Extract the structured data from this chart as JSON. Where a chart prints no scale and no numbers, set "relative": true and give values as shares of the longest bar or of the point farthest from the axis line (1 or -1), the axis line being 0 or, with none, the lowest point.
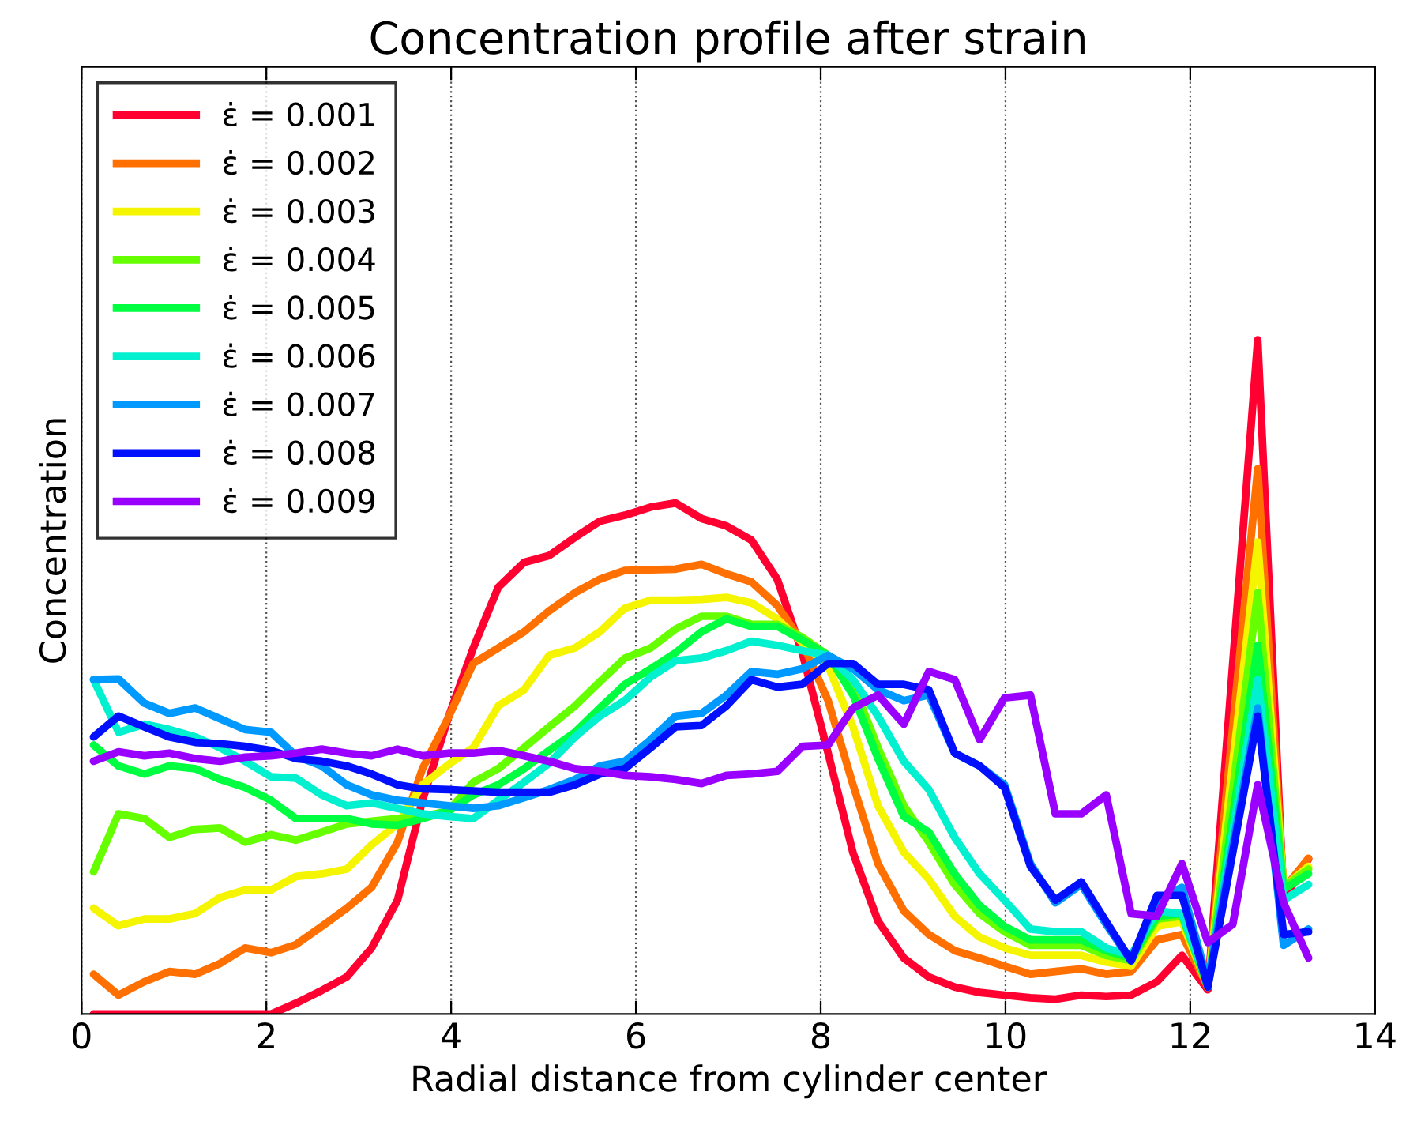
{
  "chart_data": {
    "type": "line",
    "title": "Concentration profile after strain",
    "xlabel": "Radial distance from cylinder center",
    "ylabel": "Concentration",
    "relative": true,
    "xlim": [
      0,
      14
    ],
    "xticks": [
      0,
      2,
      4,
      6,
      8,
      10,
      12,
      14
    ],
    "grid": "x",
    "legend": "top left",
    "line_style": "solid",
    "marker": "none",
    "x": [
      0.13,
      0.4,
      0.68,
      0.95,
      1.23,
      1.5,
      1.77,
      2.05,
      2.32,
      2.6,
      2.87,
      3.14,
      3.42,
      3.69,
      3.97,
      4.24,
      4.51,
      4.79,
      5.06,
      5.34,
      5.61,
      5.88,
      6.16,
      6.43,
      6.71,
      6.98,
      7.25,
      7.53,
      7.8,
      8.08,
      8.35,
      8.62,
      8.9,
      9.17,
      9.45,
      9.72,
      9.99,
      10.27,
      10.54,
      10.82,
      11.09,
      11.36,
      11.64,
      11.91,
      12.19,
      12.46,
      12.73,
      13.01,
      13.28
    ],
    "series": [
      {
        "name": "ε̇ = 0.001",
        "color": "#ff0030",
        "values": [
          0,
          0,
          0,
          0,
          0,
          0,
          0,
          0,
          0.016,
          0.035,
          0.055,
          0.098,
          0.169,
          0.317,
          0.44,
          0.543,
          0.633,
          0.67,
          0.68,
          0.707,
          0.731,
          0.74,
          0.752,
          0.758,
          0.735,
          0.724,
          0.703,
          0.645,
          0.536,
          0.387,
          0.239,
          0.138,
          0.083,
          0.055,
          0.04,
          0.032,
          0.028,
          0.024,
          0.022,
          0.028,
          0.026,
          0.028,
          0.048,
          0.087,
          0.036,
          0.52,
          1.0,
          0.17,
          0.23
        ]
      },
      {
        "name": "ε̇ = 0.002",
        "color": "#ff7000",
        "values": [
          0.059,
          0.028,
          0.048,
          0.063,
          0.059,
          0.075,
          0.098,
          0.091,
          0.103,
          0.13,
          0.157,
          0.188,
          0.255,
          0.364,
          0.44,
          0.52,
          0.543,
          0.567,
          0.598,
          0.625,
          0.645,
          0.658,
          0.659,
          0.66,
          0.667,
          0.653,
          0.641,
          0.606,
          0.551,
          0.465,
          0.34,
          0.223,
          0.153,
          0.118,
          0.094,
          0.083,
          0.071,
          0.059,
          0.063,
          0.067,
          0.059,
          0.063,
          0.11,
          0.118,
          0.04,
          0.426,
          0.809,
          0.185,
          0.231
        ]
      },
      {
        "name": "ε̇ = 0.003",
        "color": "#f5f500",
        "values": [
          0.157,
          0.131,
          0.141,
          0.141,
          0.149,
          0.173,
          0.184,
          0.184,
          0.204,
          0.208,
          0.215,
          0.251,
          0.282,
          0.34,
          0.37,
          0.395,
          0.457,
          0.481,
          0.532,
          0.543,
          0.567,
          0.602,
          0.614,
          0.614,
          0.615,
          0.618,
          0.61,
          0.586,
          0.551,
          0.516,
          0.426,
          0.309,
          0.24,
          0.2,
          0.145,
          0.114,
          0.098,
          0.087,
          0.087,
          0.087,
          0.077,
          0.071,
          0.13,
          0.137,
          0.04,
          0.372,
          0.7,
          0.188,
          0.219
        ]
      },
      {
        "name": "ε̇ = 0.004",
        "color": "#66ff00",
        "values": [
          0.211,
          0.297,
          0.29,
          0.262,
          0.274,
          0.276,
          0.255,
          0.266,
          0.258,
          0.27,
          0.282,
          0.286,
          0.29,
          0.293,
          0.301,
          0.344,
          0.364,
          0.395,
          0.426,
          0.457,
          0.493,
          0.528,
          0.543,
          0.571,
          0.59,
          0.59,
          0.578,
          0.578,
          0.559,
          0.532,
          0.489,
          0.395,
          0.309,
          0.255,
          0.192,
          0.149,
          0.122,
          0.102,
          0.102,
          0.102,
          0.087,
          0.079,
          0.141,
          0.145,
          0.04,
          0.333,
          0.625,
          0.188,
          0.215
        ]
      },
      {
        "name": "ε̇ = 0.005",
        "color": "#00ff40",
        "values": [
          0.399,
          0.368,
          0.356,
          0.368,
          0.364,
          0.348,
          0.336,
          0.317,
          0.29,
          0.29,
          0.29,
          0.282,
          0.28,
          0.29,
          0.301,
          0.325,
          0.34,
          0.364,
          0.391,
          0.418,
          0.454,
          0.489,
          0.512,
          0.536,
          0.567,
          0.586,
          0.575,
          0.575,
          0.555,
          0.532,
          0.473,
          0.379,
          0.293,
          0.27,
          0.208,
          0.161,
          0.13,
          0.11,
          0.11,
          0.11,
          0.094,
          0.083,
          0.145,
          0.149,
          0.04,
          0.293,
          0.547,
          0.185,
          0.208
        ]
      },
      {
        "name": "ε̇ = 0.006",
        "color": "#00f0d0",
        "values": [
          0.496,
          0.418,
          0.43,
          0.422,
          0.411,
          0.395,
          0.375,
          0.352,
          0.35,
          0.325,
          0.309,
          0.313,
          0.305,
          0.297,
          0.293,
          0.29,
          0.317,
          0.344,
          0.372,
          0.411,
          0.442,
          0.465,
          0.5,
          0.524,
          0.528,
          0.539,
          0.553,
          0.547,
          0.539,
          0.532,
          0.496,
          0.442,
          0.375,
          0.333,
          0.262,
          0.208,
          0.169,
          0.126,
          0.122,
          0.122,
          0.098,
          0.087,
          0.153,
          0.149,
          0.044,
          0.27,
          0.496,
          0.169,
          0.192
        ]
      },
      {
        "name": "ε̇ = 0.007",
        "color": "#0099ff",
        "values": [
          0.496,
          0.497,
          0.461,
          0.446,
          0.454,
          0.438,
          0.422,
          0.418,
          0.383,
          0.368,
          0.34,
          0.325,
          0.317,
          0.313,
          0.309,
          0.305,
          0.309,
          0.321,
          0.333,
          0.348,
          0.368,
          0.375,
          0.407,
          0.442,
          0.446,
          0.473,
          0.508,
          0.504,
          0.512,
          0.532,
          0.512,
          0.481,
          0.465,
          0.473,
          0.387,
          0.368,
          0.34,
          0.223,
          0.165,
          0.192,
          0.133,
          0.079,
          0.169,
          0.188,
          0.048,
          0.251,
          0.454,
          0.102,
          0.126
        ]
      },
      {
        "name": "ε̇ = 0.008",
        "color": "#0010ff",
        "values": [
          0.411,
          0.442,
          0.426,
          0.411,
          0.403,
          0.401,
          0.397,
          0.391,
          0.379,
          0.375,
          0.368,
          0.356,
          0.34,
          0.334,
          0.333,
          0.331,
          0.329,
          0.329,
          0.329,
          0.34,
          0.356,
          0.364,
          0.395,
          0.426,
          0.428,
          0.457,
          0.496,
          0.485,
          0.489,
          0.52,
          0.52,
          0.489,
          0.489,
          0.481,
          0.387,
          0.368,
          0.336,
          0.219,
          0.169,
          0.196,
          0.137,
          0.079,
          0.176,
          0.176,
          0.04,
          0.24,
          0.442,
          0.118,
          0.122
        ]
      },
      {
        "name": "ε̇ = 0.009",
        "color": "#9900ff",
        "values": [
          0.375,
          0.389,
          0.383,
          0.387,
          0.379,
          0.375,
          0.381,
          0.383,
          0.387,
          0.393,
          0.387,
          0.383,
          0.393,
          0.383,
          0.387,
          0.387,
          0.391,
          0.383,
          0.375,
          0.364,
          0.36,
          0.354,
          0.352,
          0.348,
          0.342,
          0.354,
          0.356,
          0.36,
          0.397,
          0.399,
          0.454,
          0.473,
          0.43,
          0.508,
          0.496,
          0.407,
          0.469,
          0.473,
          0.297,
          0.297,
          0.325,
          0.149,
          0.145,
          0.223,
          0.106,
          0.133,
          0.34,
          0.165,
          0.083
        ]
      }
    ]
  }
}
